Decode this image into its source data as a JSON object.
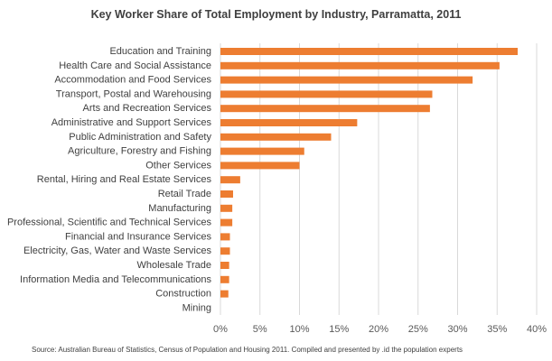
{
  "chart_data": {
    "type": "bar",
    "orientation": "horizontal",
    "title": "Key Worker Share of Total Employment by Industry, Parramatta, 2011",
    "categories": [
      "Education and Training",
      "Health Care and Social Assistance",
      "Accommodation and Food Services",
      "Transport, Postal and Warehousing",
      "Arts and Recreation Services",
      "Administrative and Support Services",
      "Public Administration and Safety",
      "Agriculture, Forestry and Fishing",
      "Other Services",
      "Rental, Hiring and Real Estate Services",
      "Retail Trade",
      "Manufacturing",
      "Professional, Scientific and Technical Services",
      "Financial and Insurance Services",
      "Electricity, Gas, Water and Waste Services",
      "Wholesale Trade",
      "Information Media and Telecommunications",
      "Construction",
      "Mining"
    ],
    "values": [
      37.6,
      35.3,
      31.9,
      26.8,
      26.5,
      17.3,
      14.0,
      10.6,
      10.0,
      2.5,
      1.6,
      1.5,
      1.5,
      1.2,
      1.2,
      1.1,
      1.1,
      1.0,
      0.0
    ],
    "xlim": [
      0,
      40
    ],
    "xticks": [
      "0%",
      "5%",
      "10%",
      "15%",
      "20%",
      "25%",
      "30%",
      "35%",
      "40%"
    ],
    "xlabel": "",
    "ylabel": "",
    "grid": true,
    "legend": "none",
    "bar_color": "#ED7D31",
    "source": "Source: Australian Bureau of Statistics, Census of Population and Housing 2011. Compiled and presented by .id the population experts"
  }
}
